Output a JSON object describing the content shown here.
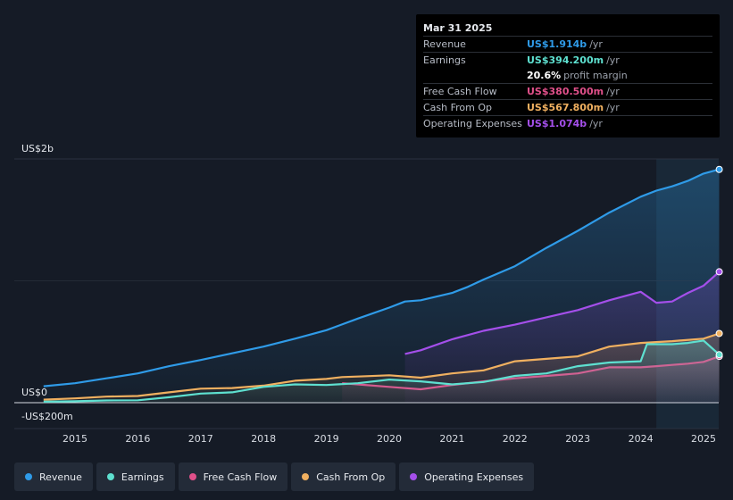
{
  "tooltip": {
    "date": "Mar 31 2025",
    "rows": [
      {
        "label": "Revenue",
        "value": "US$1.914b",
        "suffix": "/yr",
        "color": "#2f9be8"
      },
      {
        "label": "Earnings",
        "value": "US$394.200m",
        "suffix": "/yr",
        "color": "#5ee0d0"
      },
      {
        "label": "",
        "value": "20.6%",
        "suffix": "profit margin",
        "color": "#ffffff"
      },
      {
        "label": "Free Cash Flow",
        "value": "US$380.500m",
        "suffix": "/yr",
        "color": "#e0508a"
      },
      {
        "label": "Cash From Op",
        "value": "US$567.800m",
        "suffix": "/yr",
        "color": "#f0b060"
      },
      {
        "label": "Operating Expenses",
        "value": "US$1.074b",
        "suffix": "/yr",
        "color": "#a44fea"
      }
    ]
  },
  "legend": [
    {
      "label": "Revenue",
      "color": "#2f9be8"
    },
    {
      "label": "Earnings",
      "color": "#5ee0d0"
    },
    {
      "label": "Free Cash Flow",
      "color": "#e0508a"
    },
    {
      "label": "Cash From Op",
      "color": "#f0b060"
    },
    {
      "label": "Operating Expenses",
      "color": "#a44fea"
    }
  ],
  "chart_data": {
    "type": "area",
    "title": "",
    "xlabel": "",
    "ylabel": "",
    "y_labels": [
      "US$2b",
      "US$0",
      "-US$200m"
    ],
    "x_ticks": [
      "2015",
      "2016",
      "2017",
      "2018",
      "2019",
      "2020",
      "2021",
      "2022",
      "2023",
      "2024",
      "2025"
    ],
    "x_range": [
      2014.4,
      2025.3
    ],
    "ylim": [
      -200,
      2000
    ],
    "units": "US$ millions",
    "highlight_start": 2024.25,
    "series": [
      {
        "name": "Revenue",
        "color": "#2f9be8",
        "x": [
          2014.5,
          2015.0,
          2015.5,
          2016.0,
          2016.5,
          2017.0,
          2017.5,
          2018.0,
          2018.5,
          2019.0,
          2019.5,
          2020.0,
          2020.25,
          2020.5,
          2021.0,
          2021.25,
          2021.5,
          2022.0,
          2022.5,
          2023.0,
          2023.5,
          2024.0,
          2024.25,
          2024.5,
          2024.75,
          2025.0,
          2025.25
        ],
        "values": [
          135,
          160,
          200,
          240,
          300,
          350,
          405,
          460,
          525,
          595,
          690,
          780,
          830,
          840,
          900,
          950,
          1010,
          1120,
          1270,
          1410,
          1560,
          1690,
          1740,
          1775,
          1820,
          1880,
          1914
        ]
      },
      {
        "name": "Earnings",
        "color": "#5ee0d0",
        "x": [
          2014.5,
          2015.0,
          2015.5,
          2016.0,
          2016.5,
          2017.0,
          2017.5,
          2018.0,
          2018.5,
          2019.0,
          2019.5,
          2020.0,
          2020.5,
          2021.0,
          2021.5,
          2022.0,
          2022.5,
          2023.0,
          2023.5,
          2024.0,
          2024.1,
          2024.25,
          2024.5,
          2024.75,
          2025.0,
          2025.25
        ],
        "values": [
          8,
          12,
          18,
          20,
          45,
          75,
          85,
          130,
          150,
          145,
          160,
          190,
          175,
          150,
          170,
          220,
          240,
          300,
          330,
          340,
          480,
          480,
          480,
          490,
          510,
          394
        ]
      },
      {
        "name": "Free Cash Flow",
        "color": "#e0508a",
        "x": [
          2019.25,
          2019.5,
          2020.0,
          2020.5,
          2021.0,
          2021.5,
          2022.0,
          2022.5,
          2023.0,
          2023.5,
          2024.0,
          2024.25,
          2024.5,
          2024.75,
          2025.0,
          2025.25
        ],
        "values": [
          160,
          150,
          130,
          110,
          145,
          175,
          200,
          220,
          240,
          290,
          290,
          300,
          310,
          320,
          335,
          380
        ]
      },
      {
        "name": "Cash From Op",
        "color": "#f0b060",
        "x": [
          2014.5,
          2015.0,
          2015.5,
          2016.0,
          2016.5,
          2017.0,
          2017.5,
          2018.0,
          2018.5,
          2019.0,
          2019.25,
          2019.5,
          2020.0,
          2020.5,
          2021.0,
          2021.5,
          2022.0,
          2022.5,
          2023.0,
          2023.5,
          2024.0,
          2024.5,
          2025.0,
          2025.25
        ],
        "values": [
          25,
          35,
          50,
          55,
          85,
          115,
          120,
          140,
          180,
          195,
          210,
          215,
          225,
          205,
          240,
          265,
          340,
          360,
          380,
          460,
          490,
          505,
          525,
          568
        ]
      },
      {
        "name": "Operating Expenses",
        "color": "#a44fea",
        "x": [
          2020.25,
          2020.5,
          2021.0,
          2021.5,
          2022.0,
          2022.5,
          2023.0,
          2023.5,
          2024.0,
          2024.25,
          2024.5,
          2024.75,
          2025.0,
          2025.25
        ],
        "values": [
          400,
          430,
          520,
          590,
          640,
          700,
          760,
          840,
          910,
          820,
          830,
          900,
          960,
          1074
        ]
      }
    ]
  }
}
